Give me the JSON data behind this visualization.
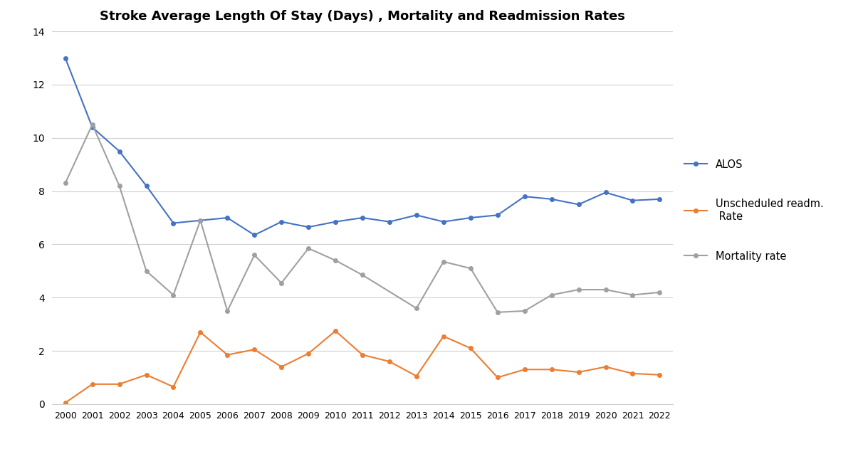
{
  "title": "Stroke Average Length Of Stay (Days) , Mortality and Readmission Rates",
  "years": [
    2000,
    2001,
    2002,
    2003,
    2004,
    2005,
    2006,
    2007,
    2008,
    2009,
    2010,
    2011,
    2012,
    2013,
    2014,
    2015,
    2016,
    2017,
    2018,
    2019,
    2020,
    2021,
    2022
  ],
  "alos": [
    13.0,
    10.4,
    9.5,
    8.2,
    6.8,
    6.9,
    7.0,
    6.35,
    6.85,
    6.65,
    6.85,
    7.0,
    6.85,
    7.1,
    6.85,
    7.0,
    7.1,
    7.8,
    7.7,
    7.5,
    7.95,
    7.65,
    7.7
  ],
  "readm": [
    0.05,
    0.75,
    0.75,
    1.1,
    0.65,
    2.7,
    1.85,
    2.05,
    1.4,
    1.9,
    2.75,
    1.85,
    1.6,
    1.05,
    2.55,
    2.1,
    1.0,
    1.3,
    1.3,
    1.2,
    1.4,
    1.15,
    1.1
  ],
  "mortality": [
    8.3,
    10.5,
    8.2,
    5.0,
    4.1,
    6.9,
    3.5,
    5.6,
    4.55,
    5.85,
    5.4,
    4.85,
    null,
    3.6,
    5.35,
    5.1,
    3.45,
    3.5,
    4.1,
    4.3,
    4.3,
    4.1,
    4.2
  ],
  "alos_color": "#4472C4",
  "readm_color": "#ED7D31",
  "mortality_color": "#A0A0A0",
  "ylim": [
    0,
    14
  ],
  "yticks": [
    0,
    2,
    4,
    6,
    8,
    10,
    12,
    14
  ],
  "legend_alos": "ALOS",
  "legend_readm": "Unscheduled readm.\n Rate",
  "legend_mortality": "Mortality rate",
  "title_fontsize": 13,
  "background_color": "#ffffff"
}
